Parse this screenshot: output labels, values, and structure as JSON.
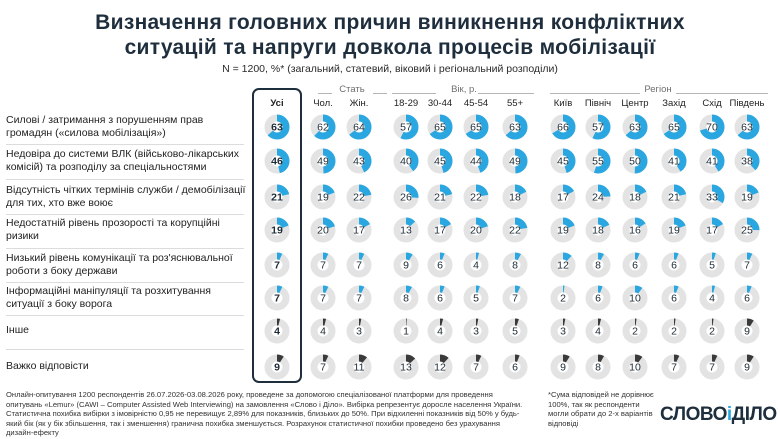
{
  "title_line1": "Визначення головних причин виникнення конфліктних",
  "title_line2": "ситуацій та напруги довкола процесів мобілізації",
  "subtitle": "N = 1200, %* (загальний, статевий, віковий і регіональний розподіли)",
  "groups": {
    "sex": "Стать",
    "age": "Вік, р.",
    "region": "Регіон"
  },
  "footnote": "Онлайн-опитування 1200 респондентів 26.07.2026-03.08.2026 року, проведене за допомогою спеціалізованої платформи для проведення опитувань «Lemur» (CAWI – Computer Assisted Web Interviewing) на замовлення «Слово і Діло». Вибірка репрезентує доросле населення України. Статистична похибка вибірки з імовірністю 0,95 не перевищує 2,89% для показників, близьких до 50%. При відхиленні показників від 50% у будь-який бік (як у бік збільшення, так і зменшення) гранична похибка зменшується. Розрахунок статистичної похибки проведено без урахування дизайн-ефекту",
  "footnote2": "*Сума відповідей не дорівнює 100%, так як респонденти могли обрати до 2-х варіантів відповіді",
  "logo_a": "СЛОВО",
  "logo_i": "і",
  "logo_b": "ДІЛО",
  "chart_data": {
    "type": "table",
    "columns": [
      "Усі",
      "Чол.",
      "Жін.",
      "18-29",
      "30-44",
      "45-54",
      "55+",
      "Київ",
      "Північ",
      "Центр",
      "Захід",
      "Схід",
      "Південь"
    ],
    "rows": [
      {
        "label": "Силові / затримання з порушенням прав громадян («силова мобілізація»)",
        "values": [
          63,
          62,
          64,
          57,
          65,
          65,
          63,
          66,
          57,
          63,
          65,
          70,
          63
        ]
      },
      {
        "label": "Недовіра до системи ВЛК (військово-лікарських комісій) та розподілу за спеціальностями",
        "values": [
          46,
          49,
          43,
          40,
          45,
          44,
          49,
          45,
          55,
          50,
          41,
          41,
          38
        ]
      },
      {
        "label": "Відсутність чітких термінів служби / демобілізації для тих, хто вже воює",
        "values": [
          21,
          19,
          22,
          26,
          21,
          22,
          18,
          17,
          24,
          18,
          21,
          33,
          19
        ]
      },
      {
        "label": "Недостатній рівень прозорості та корупційні ризики",
        "values": [
          19,
          20,
          17,
          13,
          17,
          20,
          22,
          19,
          18,
          16,
          19,
          17,
          25
        ]
      },
      {
        "label": "Низький рівень комунікації та роз'яснювальної роботи з боку держави",
        "values": [
          7,
          7,
          7,
          9,
          6,
          4,
          8,
          12,
          8,
          6,
          6,
          5,
          7
        ]
      },
      {
        "label": "Інформаційні маніпуляції та розхитування ситуації з боку ворога",
        "values": [
          7,
          7,
          7,
          8,
          6,
          5,
          7,
          2,
          6,
          10,
          6,
          4,
          6
        ]
      },
      {
        "label": "Інше",
        "values": [
          4,
          4,
          3,
          1,
          4,
          3,
          5,
          3,
          4,
          2,
          2,
          2,
          9
        ]
      },
      {
        "label": "Важко відповісти",
        "values": [
          9,
          7,
          11,
          13,
          12,
          7,
          6,
          9,
          8,
          10,
          7,
          7,
          9
        ]
      }
    ],
    "colors": {
      "filled": "#2aa7e0",
      "other": "#3a3a3a",
      "track": "#e3e3e3"
    }
  }
}
